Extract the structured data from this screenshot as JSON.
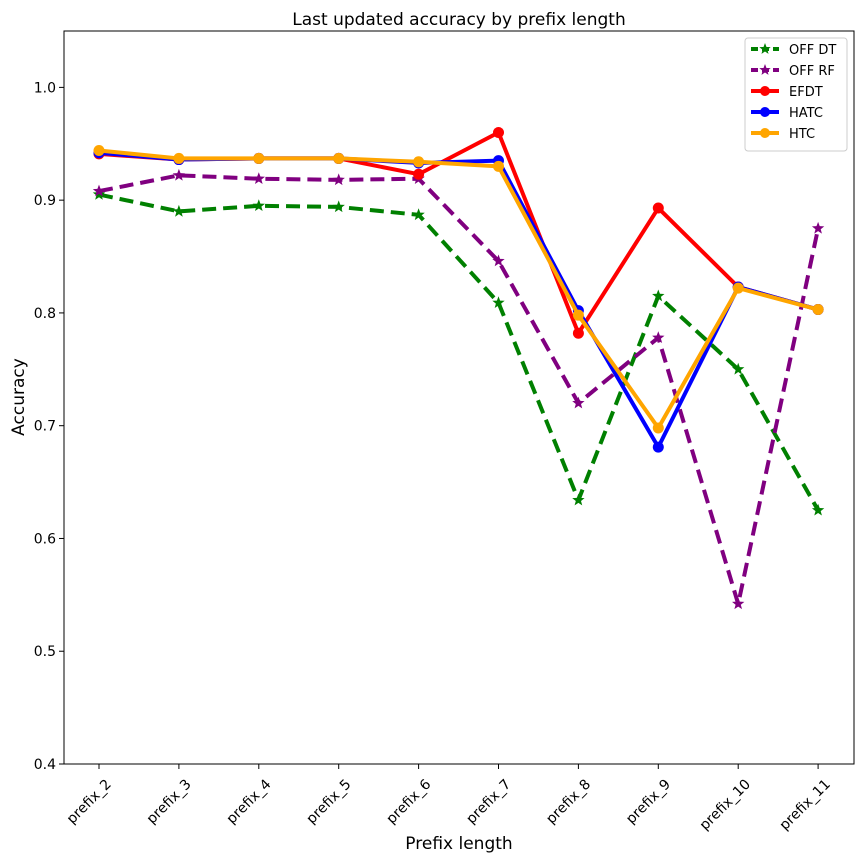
{
  "chart_data": {
    "type": "line",
    "title": "Last updated accuracy by prefix length",
    "xlabel": "Prefix length",
    "ylabel": "Accuracy",
    "categories": [
      "prefix_2",
      "prefix_3",
      "prefix_4",
      "prefix_5",
      "prefix_6",
      "prefix_7",
      "prefix_8",
      "prefix_9",
      "prefix_10",
      "prefix_11"
    ],
    "ylim": [
      0.4,
      1.05
    ],
    "yticks": [
      "0.4",
      "0.5",
      "0.6",
      "0.7",
      "0.8",
      "0.9",
      "1.0"
    ],
    "ytick_values": [
      0.4,
      0.5,
      0.6,
      0.7,
      0.8,
      0.9,
      1.0
    ],
    "grid": false,
    "legend_position": "top-right",
    "series": [
      {
        "name": "OFF DT",
        "color": "#008000",
        "style": "dashed",
        "marker": "star",
        "values": [
          0.905,
          0.89,
          0.895,
          0.894,
          0.887,
          0.809,
          0.634,
          0.815,
          0.75,
          0.625
        ]
      },
      {
        "name": "OFF RF",
        "color": "#800080",
        "style": "dashed",
        "marker": "star",
        "values": [
          0.908,
          0.922,
          0.919,
          0.918,
          0.919,
          0.846,
          0.72,
          0.778,
          0.542,
          0.875
        ]
      },
      {
        "name": "EFDT",
        "color": "#ff0000",
        "style": "solid",
        "marker": "circle",
        "values": [
          0.941,
          0.936,
          0.937,
          0.937,
          0.923,
          0.96,
          0.782,
          0.893,
          0.823,
          0.803
        ]
      },
      {
        "name": "HATC",
        "color": "#0000ff",
        "style": "solid",
        "marker": "circle",
        "values": [
          0.942,
          0.936,
          0.937,
          0.937,
          0.933,
          0.935,
          0.802,
          0.681,
          0.823,
          0.803
        ]
      },
      {
        "name": "HTC",
        "color": "#ffa500",
        "style": "solid",
        "marker": "circle",
        "values": [
          0.944,
          0.937,
          0.937,
          0.937,
          0.934,
          0.93,
          0.798,
          0.698,
          0.822,
          0.803
        ]
      }
    ]
  }
}
